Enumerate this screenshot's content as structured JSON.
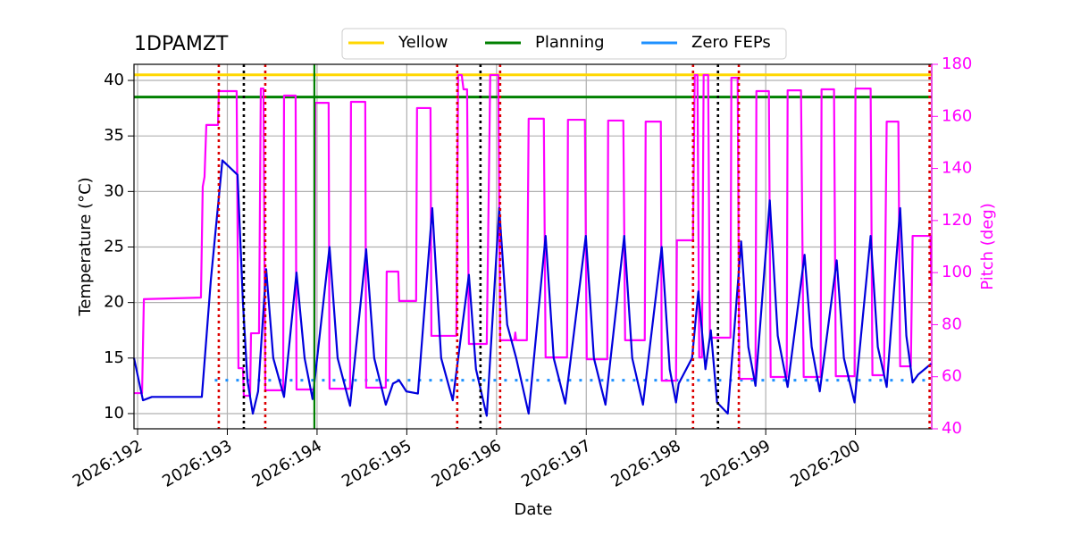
{
  "chart_data": {
    "type": "line",
    "title": "1DPAMZT",
    "xlabel": "Date",
    "ylabel": "Temperature (°C)",
    "y2label": "Pitch (deg)",
    "y2color": "#ff00ff",
    "legend": "top",
    "grid": true,
    "xlim": [
      191.96,
      200.85
    ],
    "xticks": [
      {
        "value": 192,
        "label": "2026:192"
      },
      {
        "value": 193,
        "label": "2026:193"
      },
      {
        "value": 194,
        "label": "2026:194"
      },
      {
        "value": 195,
        "label": "2026:195"
      },
      {
        "value": 196,
        "label": "2026:196"
      },
      {
        "value": 197,
        "label": "2026:197"
      },
      {
        "value": 198,
        "label": "2026:198"
      },
      {
        "value": 199,
        "label": "2026:199"
      },
      {
        "value": 200,
        "label": "2026:200"
      }
    ],
    "ylim": [
      8.63,
      41.45
    ],
    "yticks": [
      10,
      15,
      20,
      25,
      30,
      35,
      40
    ],
    "y2lim": [
      40,
      180
    ],
    "y2ticks": [
      40,
      60,
      80,
      100,
      120,
      140,
      160,
      180
    ],
    "limit_lines": [
      {
        "name": "Yellow",
        "color": "#ffd700",
        "value": 40.5,
        "style": "solid"
      },
      {
        "name": "Planning",
        "color": "#008000",
        "value": 38.5,
        "style": "solid"
      },
      {
        "name": "Zero FEPs",
        "color": "#1e90ff",
        "value": 13,
        "style": "dotted",
        "x_range": [
          192.86,
          200.85
        ]
      }
    ],
    "vlines": [
      {
        "x": 192.905,
        "color": "#dd0000",
        "style": "dotted"
      },
      {
        "x": 193.423,
        "color": "#dd0000",
        "style": "dotted"
      },
      {
        "x": 195.562,
        "color": "#dd0000",
        "style": "dotted"
      },
      {
        "x": 196.04,
        "color": "#dd0000",
        "style": "dotted"
      },
      {
        "x": 198.19,
        "color": "#dd0000",
        "style": "dotted"
      },
      {
        "x": 198.7,
        "color": "#dd0000",
        "style": "dotted"
      },
      {
        "x": 200.826,
        "color": "#dd0000",
        "style": "dotted"
      },
      {
        "x": 193.184,
        "color": "#000000",
        "style": "dotted"
      },
      {
        "x": 195.821,
        "color": "#000000",
        "style": "dotted"
      },
      {
        "x": 198.468,
        "color": "#000000",
        "style": "dotted"
      },
      {
        "x": 193.97,
        "color": "#008000",
        "style": "solid"
      }
    ],
    "series": [
      {
        "color": "#ff00ff",
        "axis": "y2",
        "x": [
          191.96,
          192.05,
          192.07,
          192.706,
          192.726,
          192.746,
          192.766,
          192.896,
          192.905,
          193.104,
          193.124,
          193.174,
          193.184,
          193.254,
          193.264,
          193.353,
          193.373,
          193.403,
          193.423,
          193.622,
          193.632,
          193.761,
          193.771,
          193.97,
          193.98,
          194.129,
          194.139,
          194.368,
          194.378,
          194.537,
          194.547,
          194.766,
          194.776,
          194.905,
          194.915,
          195.104,
          195.114,
          195.264,
          195.274,
          195.552,
          195.572,
          195.612,
          195.632,
          195.672,
          195.692,
          195.891,
          195.93,
          196.02,
          196.04,
          196.199,
          196.209,
          196.219,
          196.338,
          196.358,
          196.527,
          196.547,
          196.786,
          196.796,
          196.985,
          197.005,
          197.234,
          197.244,
          197.413,
          197.433,
          197.652,
          197.662,
          197.831,
          197.841,
          198.0,
          198.01,
          198.189,
          198.209,
          198.239,
          198.259,
          198.289,
          198.308,
          198.358,
          198.378,
          198.607,
          198.617,
          198.687,
          198.706,
          198.886,
          198.896,
          199.035,
          199.055,
          199.234,
          199.244,
          199.393,
          199.423,
          199.612,
          199.622,
          199.761,
          199.781,
          199.99,
          200.0,
          200.169,
          200.189,
          200.318,
          200.348,
          200.478,
          200.498,
          200.617,
          200.637,
          200.836,
          200.846
        ],
        "values": [
          53.7,
          53.7,
          89.8,
          90.4,
          133,
          136.8,
          156.7,
          156.7,
          169.7,
          169.7,
          63.3,
          63.3,
          52.7,
          52.7,
          76.7,
          76.7,
          170.7,
          170.7,
          54.8,
          54.8,
          168,
          168,
          55.1,
          55.1,
          165.2,
          165.2,
          55.4,
          55.4,
          165.6,
          165.6,
          55.8,
          55.8,
          100.4,
          100.4,
          89.1,
          89.1,
          163.2,
          163.2,
          75.7,
          75.7,
          175.9,
          175.9,
          170.4,
          170.4,
          72.6,
          72.6,
          175.9,
          175.9,
          74,
          74,
          77,
          74,
          74,
          159.1,
          159.1,
          67.4,
          67.4,
          158.7,
          158.7,
          66.7,
          66.7,
          158.4,
          158.4,
          74,
          74,
          158,
          158,
          58.5,
          58.5,
          112.4,
          112.4,
          175.9,
          175.9,
          67.4,
          67.4,
          175.9,
          175.9,
          75,
          75,
          174.8,
          174.8,
          59.2,
          59.2,
          169.7,
          169.7,
          59.9,
          59.9,
          170,
          170,
          59.9,
          59.9,
          170.4,
          170.4,
          60.2,
          60.2,
          170.7,
          170.7,
          60.6,
          60.6,
          158,
          158,
          64,
          64,
          114.1,
          114.1,
          94.9
        ]
      },
      {
        "color": "#0000dd",
        "axis": "y",
        "x": [
          191.96,
          192.06,
          192.159,
          192.716,
          192.816,
          192.945,
          193.114,
          193.174,
          193.224,
          193.284,
          193.343,
          193.433,
          193.512,
          193.632,
          193.771,
          193.861,
          193.95,
          194.139,
          194.229,
          194.368,
          194.547,
          194.637,
          194.766,
          194.846,
          194.915,
          194.995,
          195.124,
          195.284,
          195.383,
          195.512,
          195.692,
          195.771,
          195.891,
          196.03,
          196.119,
          196.219,
          196.358,
          196.547,
          196.637,
          196.766,
          196.995,
          197.085,
          197.214,
          197.423,
          197.512,
          197.632,
          197.841,
          197.93,
          198.0,
          198.03,
          198.179,
          198.249,
          198.328,
          198.388,
          198.458,
          198.577,
          198.726,
          198.806,
          198.886,
          199.045,
          199.134,
          199.244,
          199.433,
          199.512,
          199.602,
          199.791,
          199.871,
          199.99,
          200.169,
          200.249,
          200.348,
          200.498,
          200.567,
          200.637,
          200.697,
          200.846
        ],
        "values": [
          15,
          11.2,
          11.5,
          11.5,
          22,
          32.8,
          31.5,
          20,
          13,
          10,
          12,
          23,
          15,
          11.5,
          22.7,
          15,
          11.3,
          25,
          15,
          10.7,
          24.8,
          15,
          10.8,
          12.7,
          13,
          12,
          11.8,
          28.5,
          15,
          11.2,
          22.5,
          14,
          9.8,
          28.5,
          18,
          15,
          10,
          26,
          15,
          10.9,
          26,
          15,
          10.8,
          26,
          15,
          10.8,
          25,
          14,
          11,
          12.7,
          15,
          21,
          14,
          17.5,
          11,
          10,
          25.5,
          16,
          12.5,
          29.2,
          17,
          12.4,
          24.3,
          16,
          12,
          23.8,
          15,
          11,
          26,
          16,
          12.4,
          28.5,
          17,
          12.8,
          13.5,
          14.5
        ]
      }
    ]
  }
}
